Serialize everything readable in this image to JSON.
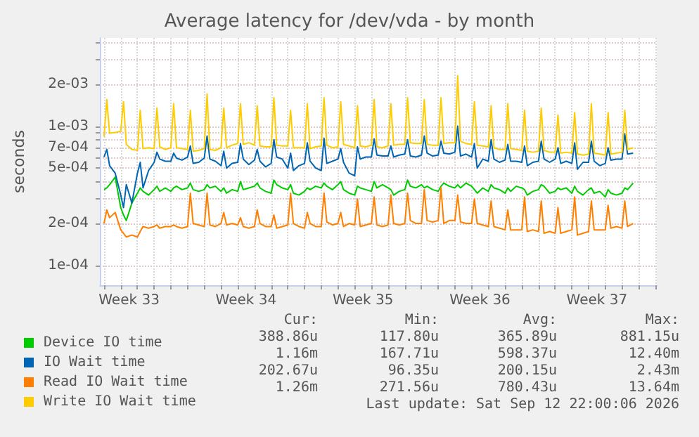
{
  "chart_data": {
    "type": "line",
    "title": "Average latency for /dev/vda - by month",
    "ylabel": "seconds",
    "x": [
      "2026-08-12T00:00",
      "2026-08-12T04:00",
      "2026-08-12T08:00",
      "2026-08-12T16:00",
      "2026-08-13T00:00",
      "2026-08-13T04:00",
      "2026-08-13T08:00",
      "2026-08-13T16:00",
      "2026-08-14T00:00",
      "2026-08-14T04:00",
      "2026-08-14T08:00",
      "2026-08-14T16:00",
      "2026-08-15T00:00",
      "2026-08-15T04:00",
      "2026-08-15T08:00",
      "2026-08-15T16:00",
      "2026-08-16T00:00",
      "2026-08-16T04:00",
      "2026-08-16T08:00",
      "2026-08-16T16:00",
      "2026-08-17T00:00",
      "2026-08-17T04:00",
      "2026-08-17T08:00",
      "2026-08-17T16:00",
      "2026-08-18T00:00",
      "2026-08-18T04:00",
      "2026-08-18T08:00",
      "2026-08-18T16:00",
      "2026-08-19T00:00",
      "2026-08-19T04:00",
      "2026-08-19T08:00",
      "2026-08-19T16:00",
      "2026-08-20T00:00",
      "2026-08-20T04:00",
      "2026-08-20T08:00",
      "2026-08-20T16:00",
      "2026-08-21T00:00",
      "2026-08-21T04:00",
      "2026-08-21T08:00",
      "2026-08-21T16:00",
      "2026-08-22T00:00",
      "2026-08-22T04:00",
      "2026-08-22T08:00",
      "2026-08-22T16:00",
      "2026-08-23T00:00",
      "2026-08-23T04:00",
      "2026-08-23T08:00",
      "2026-08-23T16:00",
      "2026-08-24T00:00",
      "2026-08-24T04:00",
      "2026-08-24T08:00",
      "2026-08-24T16:00",
      "2026-08-25T00:00",
      "2026-08-25T04:00",
      "2026-08-25T08:00",
      "2026-08-25T16:00",
      "2026-08-26T00:00",
      "2026-08-26T04:00",
      "2026-08-26T08:00",
      "2026-08-26T16:00",
      "2026-08-27T00:00",
      "2026-08-27T04:00",
      "2026-08-27T08:00",
      "2026-08-27T16:00",
      "2026-08-28T00:00",
      "2026-08-28T04:00",
      "2026-08-28T08:00",
      "2026-08-28T16:00",
      "2026-08-29T00:00",
      "2026-08-29T04:00",
      "2026-08-29T08:00",
      "2026-08-29T16:00",
      "2026-08-30T00:00",
      "2026-08-30T04:00",
      "2026-08-30T08:00",
      "2026-08-30T16:00",
      "2026-08-31T00:00",
      "2026-08-31T04:00",
      "2026-08-31T08:00",
      "2026-08-31T16:00",
      "2026-09-01T00:00",
      "2026-09-01T04:00",
      "2026-09-01T08:00",
      "2026-09-01T16:00",
      "2026-09-02T00:00",
      "2026-09-02T04:00",
      "2026-09-02T08:00",
      "2026-09-02T16:00",
      "2026-09-03T00:00",
      "2026-09-03T04:00",
      "2026-09-03T08:00",
      "2026-09-03T16:00",
      "2026-09-04T00:00",
      "2026-09-04T04:00",
      "2026-09-04T08:00",
      "2026-09-04T16:00",
      "2026-09-05T00:00",
      "2026-09-05T04:00",
      "2026-09-05T08:00",
      "2026-09-05T16:00",
      "2026-09-06T00:00",
      "2026-09-06T04:00",
      "2026-09-06T08:00",
      "2026-09-06T16:00",
      "2026-09-07T00:00",
      "2026-09-07T04:00",
      "2026-09-07T08:00",
      "2026-09-07T16:00",
      "2026-09-08T00:00",
      "2026-09-08T04:00",
      "2026-09-08T08:00",
      "2026-09-08T16:00",
      "2026-09-09T00:00",
      "2026-09-09T04:00",
      "2026-09-09T08:00",
      "2026-09-09T16:00",
      "2026-09-10T00:00",
      "2026-09-10T04:00",
      "2026-09-10T08:00",
      "2026-09-10T16:00",
      "2026-09-11T00:00",
      "2026-09-11T04:00",
      "2026-09-11T08:00",
      "2026-09-11T16:00",
      "2026-09-12T00:00",
      "2026-09-12T04:00",
      "2026-09-12T08:00",
      "2026-09-12T16:00"
    ],
    "series": [
      {
        "name": "Device IO time",
        "color": "#00cc00",
        "values": [
          0.00035,
          0.00036,
          0.00038,
          0.00043,
          0.00026,
          0.00023,
          0.00021,
          0.00028,
          0.00033,
          0.00036,
          0.00034,
          0.00032,
          0.00035,
          0.00037,
          0.00034,
          0.00036,
          0.00034,
          0.00036,
          0.00037,
          0.00035,
          0.00036,
          0.00039,
          0.00035,
          0.00034,
          0.00035,
          0.00038,
          0.00036,
          0.00037,
          0.00034,
          0.00036,
          0.00033,
          0.00035,
          0.00034,
          0.0004,
          0.00035,
          0.00036,
          0.00037,
          0.00039,
          0.00036,
          0.00034,
          0.00033,
          0.00041,
          0.00038,
          0.00036,
          0.00035,
          0.00038,
          0.00033,
          0.00032,
          0.00034,
          0.00036,
          0.00035,
          0.00037,
          0.00036,
          0.00039,
          0.00037,
          0.00035,
          0.00038,
          0.0004,
          0.00035,
          0.00033,
          0.00032,
          0.00037,
          0.00036,
          0.00035,
          0.00034,
          0.0004,
          0.00036,
          0.00038,
          0.00036,
          0.00035,
          0.00032,
          0.00034,
          0.00035,
          0.00041,
          0.00037,
          0.00036,
          0.00038,
          0.00036,
          0.00037,
          0.00035,
          0.00034,
          0.00037,
          0.00039,
          0.00037,
          0.00036,
          0.00038,
          0.00036,
          0.00039,
          0.00037,
          0.00035,
          0.00033,
          0.00036,
          0.00034,
          0.00038,
          0.00036,
          0.00035,
          0.00033,
          0.00036,
          0.00034,
          0.00037,
          0.00036,
          0.00035,
          0.00032,
          0.00034,
          0.00035,
          0.00038,
          0.00037,
          0.00033,
          0.00034,
          0.00036,
          0.00035,
          0.00036,
          0.00033,
          0.00037,
          0.00034,
          0.00032,
          0.00035,
          0.00036,
          0.00033,
          0.00034,
          0.00031,
          0.00035,
          0.00033,
          0.00032,
          0.00033,
          0.00036,
          0.00035,
          0.00039
        ]
      },
      {
        "name": "IO Wait time",
        "color": "#0066b3",
        "values": [
          0.0006,
          0.00068,
          0.00052,
          0.00046,
          0.00032,
          0.00026,
          0.00038,
          0.00028,
          0.00046,
          0.00055,
          0.00036,
          0.00048,
          0.00055,
          0.00065,
          0.00058,
          0.00056,
          0.00056,
          0.00064,
          0.00059,
          0.00057,
          0.0006,
          0.00072,
          0.00054,
          0.00055,
          0.00059,
          0.00085,
          0.00058,
          0.00056,
          0.00052,
          0.00066,
          0.0005,
          0.00054,
          0.00055,
          0.00075,
          0.00058,
          0.00053,
          0.00057,
          0.00068,
          0.00056,
          0.00051,
          0.00054,
          0.0008,
          0.0006,
          0.00058,
          0.0005,
          0.00064,
          0.00048,
          0.00052,
          0.00054,
          0.00076,
          0.00056,
          0.0005,
          0.00048,
          0.00082,
          0.00054,
          0.00056,
          0.00058,
          0.00069,
          0.00055,
          0.00046,
          0.00044,
          0.00071,
          0.00058,
          0.0006,
          0.0006,
          0.00081,
          0.00062,
          0.00061,
          0.00061,
          0.00072,
          0.0006,
          0.00062,
          0.00063,
          0.0008,
          0.00061,
          0.0006,
          0.00062,
          0.00085,
          0.00064,
          0.00061,
          0.00062,
          0.00078,
          0.00064,
          0.00063,
          0.00065,
          0.001,
          0.00061,
          0.00063,
          0.0006,
          0.00075,
          0.0005,
          0.00058,
          0.00056,
          0.0008,
          0.00058,
          0.00055,
          0.00057,
          0.00074,
          0.00056,
          0.00056,
          0.00055,
          0.00072,
          0.00052,
          0.00055,
          0.00056,
          0.00078,
          0.00058,
          0.00055,
          0.00058,
          0.0007,
          0.00054,
          0.00056,
          0.00054,
          0.00076,
          0.00049,
          0.00055,
          0.00055,
          0.00078,
          0.00056,
          0.00052,
          0.00054,
          0.0007,
          0.00057,
          0.00058,
          0.00058,
          0.00088,
          0.00063,
          0.00064
        ]
      },
      {
        "name": "Read IO Wait time",
        "color": "#ff8000",
        "values": [
          0.0002,
          0.00025,
          0.00022,
          0.00024,
          0.00018,
          0.00017,
          0.00016,
          0.000165,
          0.00016,
          0.000175,
          0.00019,
          0.000185,
          0.00019,
          0.000195,
          0.000185,
          0.00019,
          0.00019,
          0.000195,
          0.00019,
          0.000185,
          0.00019,
          0.00033,
          0.0002,
          0.000195,
          0.00019,
          0.00033,
          0.000195,
          0.00019,
          0.0002,
          0.00024,
          0.000195,
          0.0002,
          0.000195,
          0.00022,
          0.00019,
          0.000185,
          0.00019,
          0.00025,
          0.0002,
          0.00019,
          0.00019,
          0.00023,
          0.000185,
          0.00019,
          0.000195,
          0.00033,
          0.0002,
          0.00019,
          0.000185,
          0.00024,
          0.0002,
          0.00019,
          0.00019,
          0.00033,
          0.000205,
          0.000195,
          0.0002,
          0.00024,
          0.00019,
          0.0002,
          0.000195,
          0.0003,
          0.00019,
          0.000195,
          0.0002,
          0.00031,
          0.000195,
          0.00019,
          0.000195,
          0.00032,
          0.0002,
          0.000195,
          0.0002,
          0.00033,
          0.00021,
          0.0002,
          0.0002,
          0.00035,
          0.00021,
          0.000205,
          0.00021,
          0.00036,
          0.0002,
          0.00021,
          0.00021,
          0.00032,
          0.000205,
          0.0002,
          0.0002,
          0.0003,
          0.0002,
          0.000195,
          0.00019,
          0.00029,
          0.00019,
          0.000185,
          0.00018,
          0.00025,
          0.00018,
          0.00018,
          0.00018,
          0.00031,
          0.000175,
          0.00018,
          0.000175,
          0.00029,
          0.00017,
          0.000175,
          0.00017,
          0.00026,
          0.00017,
          0.000175,
          0.00018,
          0.00031,
          0.000165,
          0.00017,
          0.000175,
          0.00029,
          0.00018,
          0.00018,
          0.00018,
          0.00027,
          0.000185,
          0.00019,
          0.000185,
          0.00029,
          0.00019,
          0.0002
        ]
      },
      {
        "name": "Write IO Wait time",
        "color": "#ffcc00",
        "values": [
          0.00084,
          0.00155,
          0.00089,
          0.0009,
          0.00092,
          0.0015,
          0.00074,
          0.00068,
          0.00067,
          0.0013,
          0.00069,
          0.0007,
          0.00069,
          0.00135,
          0.00071,
          0.00068,
          0.0007,
          0.00145,
          0.0007,
          0.00069,
          0.00068,
          0.0013,
          0.00066,
          0.00067,
          0.00069,
          0.0017,
          0.00068,
          0.00067,
          0.0007,
          0.00135,
          0.0007,
          0.00073,
          0.00075,
          0.00145,
          0.00074,
          0.00076,
          0.00073,
          0.0014,
          0.00072,
          0.00071,
          0.00071,
          0.0016,
          0.00073,
          0.00072,
          0.00072,
          0.0013,
          0.0007,
          0.0007,
          0.0007,
          0.00145,
          0.00069,
          0.00071,
          0.00072,
          0.0016,
          0.00073,
          0.0007,
          0.00071,
          0.0015,
          0.00074,
          0.00072,
          0.0007,
          0.0014,
          0.00072,
          0.00071,
          0.00073,
          0.00155,
          0.00071,
          0.0007,
          0.00072,
          0.00145,
          0.00073,
          0.00074,
          0.00074,
          0.0016,
          0.00076,
          0.00075,
          0.00075,
          0.00155,
          0.00074,
          0.00073,
          0.00073,
          0.0016,
          0.00075,
          0.00076,
          0.00076,
          0.0023,
          0.00078,
          0.00075,
          0.00074,
          0.0015,
          0.00073,
          0.00072,
          0.00071,
          0.0014,
          0.0007,
          0.00068,
          0.00068,
          0.00145,
          0.00069,
          0.00068,
          0.00067,
          0.0013,
          0.00066,
          0.00065,
          0.00066,
          0.00135,
          0.00067,
          0.00065,
          0.00065,
          0.0012,
          0.00064,
          0.00065,
          0.00064,
          0.00125,
          0.00063,
          0.00062,
          0.00063,
          0.00145,
          0.00064,
          0.00063,
          0.00062,
          0.00125,
          0.00063,
          0.00064,
          0.00065,
          0.0013,
          0.00068,
          0.0007
        ]
      }
    ],
    "log": true,
    "ylim": [
      7.2e-05,
      0.0043
    ],
    "yticks": [
      {
        "value": 0.0001,
        "label": "1e-04"
      },
      {
        "value": 0.0002,
        "label": "2e-04"
      },
      {
        "value": 0.0003,
        "label": null
      },
      {
        "value": 0.0004,
        "label": null
      },
      {
        "value": 0.0005,
        "label": "5e-04"
      },
      {
        "value": 0.0006,
        "label": null
      },
      {
        "value": 0.0007,
        "label": "7e-04"
      },
      {
        "value": 0.0008,
        "label": null
      },
      {
        "value": 0.0009,
        "label": null
      },
      {
        "value": 0.001,
        "label": "1e-03"
      },
      {
        "value": 0.002,
        "label": "2e-03"
      },
      {
        "value": 0.003,
        "label": null
      },
      {
        "value": 0.004,
        "label": null
      }
    ],
    "xlim": [
      "2026-08-11T18:00",
      "2026-09-14T02:00"
    ],
    "xticks": [
      {
        "value": "2026-08-13T12:00",
        "label": "Week 33"
      },
      {
        "value": "2026-08-20T12:00",
        "label": "Week 34"
      },
      {
        "value": "2026-08-27T12:00",
        "label": "Week 35"
      },
      {
        "value": "2026-09-03T12:00",
        "label": "Week 36"
      },
      {
        "value": "2026-09-10T12:00",
        "label": "Week 37"
      },
      {
        "value": "2026-08-12",
        "label": null
      },
      {
        "value": "2026-08-13",
        "label": null
      },
      {
        "value": "2026-08-14",
        "label": null
      },
      {
        "value": "2026-08-15",
        "label": null
      },
      {
        "value": "2026-08-16",
        "label": null
      },
      {
        "value": "2026-08-17",
        "label": null
      },
      {
        "value": "2026-08-18",
        "label": null
      },
      {
        "value": "2026-08-19",
        "label": null
      },
      {
        "value": "2026-08-20",
        "label": null
      },
      {
        "value": "2026-08-21",
        "label": null
      },
      {
        "value": "2026-08-22",
        "label": null
      },
      {
        "value": "2026-08-23",
        "label": null
      },
      {
        "value": "2026-08-24",
        "label": null
      },
      {
        "value": "2026-08-25",
        "label": null
      },
      {
        "value": "2026-08-26",
        "label": null
      },
      {
        "value": "2026-08-27",
        "label": null
      },
      {
        "value": "2026-08-28",
        "label": null
      },
      {
        "value": "2026-08-29",
        "label": null
      },
      {
        "value": "2026-08-30",
        "label": null
      },
      {
        "value": "2026-08-31",
        "label": null
      },
      {
        "value": "2026-09-01",
        "label": null
      },
      {
        "value": "2026-09-02",
        "label": null
      },
      {
        "value": "2026-09-03",
        "label": null
      },
      {
        "value": "2026-09-04",
        "label": null
      },
      {
        "value": "2026-09-05",
        "label": null
      },
      {
        "value": "2026-09-06",
        "label": null
      },
      {
        "value": "2026-09-07",
        "label": null
      },
      {
        "value": "2026-09-08",
        "label": null
      },
      {
        "value": "2026-09-09",
        "label": null
      },
      {
        "value": "2026-09-10",
        "label": null
      },
      {
        "value": "2026-09-11",
        "label": null
      },
      {
        "value": "2026-09-12",
        "label": null
      },
      {
        "value": "2026-09-13",
        "label": null
      },
      {
        "value": "2026-09-14",
        "label": null
      }
    ],
    "grid": true,
    "legend": "bottom",
    "annotations": [
      "Cur:",
      "Min:",
      "Avg:",
      "Max:",
      "388.86u",
      "117.80u",
      "365.89u",
      "881.15u",
      "1.16m",
      "167.71u",
      "598.37u",
      "12.40m",
      "202.67u",
      "96.35u",
      "200.15u",
      "2.43m",
      "1.26m",
      "271.56u",
      "780.43u",
      "13.64m",
      "Last update: Sat Sep 12 22:00:06 2026"
    ]
  }
}
